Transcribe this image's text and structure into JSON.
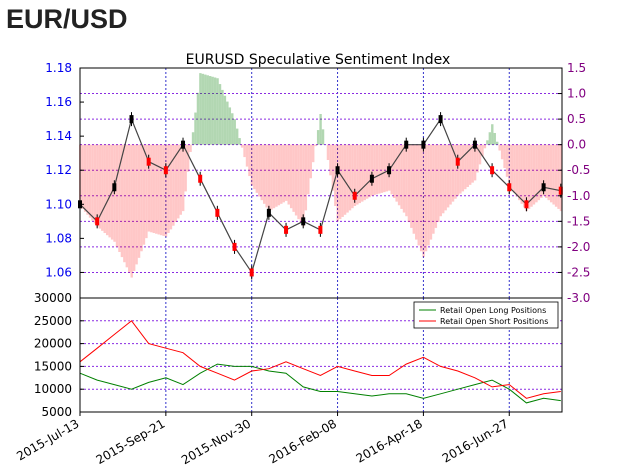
{
  "header": {
    "title": "EUR/USD"
  },
  "chart_data": [
    {
      "type": "line",
      "title": "EURUSD Speculative Sentiment Index",
      "xlabel": "",
      "ylabel": "",
      "x_tick_labels": [
        "2015-Jul-13",
        "2015-Sep-21",
        "2015-Nov-30",
        "2016-Feb-08",
        "2016-Apr-18",
        "2016-Jun-27"
      ],
      "x_tick_dates": [
        "2015-07-13",
        "2015-09-21",
        "2015-11-30",
        "2016-02-08",
        "2016-04-18",
        "2016-06-27"
      ],
      "x_range": [
        "2015-07-13",
        "2016-08-09"
      ],
      "y_left_ticks": [
        "1.06",
        "1.08",
        "1.10",
        "1.12",
        "1.14",
        "1.16",
        "1.18"
      ],
      "y_left_range": [
        1.045,
        1.18
      ],
      "y_right_ticks": [
        "-3.0",
        "-2.5",
        "-2.0",
        "-1.5",
        "-1.0",
        "-0.5",
        "0.0",
        "0.5",
        "1.0",
        "1.5"
      ],
      "y_right_range": [
        -3.0,
        1.5
      ],
      "grid": true,
      "colors": {
        "price": "#000000",
        "ssi_positive": "#228b22",
        "ssi_negative": "#ff0000",
        "left_axis": "#0000ee",
        "right_axis": "#800080"
      },
      "series": [
        {
          "name": "",
          "axis": "left",
          "style": "candlestick",
          "x": [
            "2015-07-13",
            "2015-07-27",
            "2015-08-10",
            "2015-08-24",
            "2015-09-07",
            "2015-09-21",
            "2015-10-05",
            "2015-10-19",
            "2015-11-02",
            "2015-11-16",
            "2015-11-30",
            "2015-12-14",
            "2015-12-28",
            "2016-01-11",
            "2016-01-25",
            "2016-02-08",
            "2016-02-22",
            "2016-03-07",
            "2016-03-21",
            "2016-04-04",
            "2016-04-18",
            "2016-05-02",
            "2016-05-16",
            "2016-05-30",
            "2016-06-13",
            "2016-06-27",
            "2016-07-11",
            "2016-07-25",
            "2016-08-08"
          ],
          "values": [
            1.1,
            1.09,
            1.11,
            1.15,
            1.125,
            1.12,
            1.135,
            1.115,
            1.095,
            1.075,
            1.06,
            1.095,
            1.085,
            1.09,
            1.085,
            1.12,
            1.105,
            1.115,
            1.12,
            1.135,
            1.135,
            1.15,
            1.125,
            1.135,
            1.12,
            1.11,
            1.1,
            1.11,
            1.108
          ]
        },
        {
          "name": "",
          "axis": "right",
          "style": "area",
          "x": [
            "2015-07-13",
            "2015-07-27",
            "2015-08-10",
            "2015-08-24",
            "2015-09-07",
            "2015-09-21",
            "2015-10-05",
            "2015-10-19",
            "2015-11-02",
            "2015-11-16",
            "2015-11-30",
            "2015-12-14",
            "2015-12-28",
            "2016-01-11",
            "2016-01-25",
            "2016-02-08",
            "2016-02-22",
            "2016-03-07",
            "2016-03-21",
            "2016-04-04",
            "2016-04-18",
            "2016-05-02",
            "2016-05-16",
            "2016-05-30",
            "2016-06-13",
            "2016-06-27",
            "2016-07-11",
            "2016-07-25",
            "2016-08-08"
          ],
          "values": [
            -1.2,
            -1.6,
            -1.9,
            -2.6,
            -1.7,
            -1.8,
            -1.3,
            1.4,
            1.3,
            0.5,
            -0.8,
            -1.3,
            -1.1,
            -1.6,
            0.6,
            -1.5,
            -1.2,
            -1.0,
            -0.9,
            -1.4,
            -2.2,
            -1.4,
            -1.0,
            -0.7,
            0.4,
            -0.8,
            -1.3,
            -1.0,
            -1.3
          ]
        }
      ]
    },
    {
      "type": "line",
      "title": "",
      "xlabel": "",
      "ylabel": "",
      "y_ticks": [
        "5000",
        "10000",
        "15000",
        "20000",
        "25000",
        "30000"
      ],
      "y_range": [
        5000,
        30000
      ],
      "grid": true,
      "legend": "top-right",
      "series": [
        {
          "name": "Retail Open Long Positions",
          "color": "#008000",
          "x": [
            "2015-07-13",
            "2015-07-27",
            "2015-08-10",
            "2015-08-24",
            "2015-09-07",
            "2015-09-21",
            "2015-10-05",
            "2015-10-19",
            "2015-11-02",
            "2015-11-16",
            "2015-11-30",
            "2015-12-14",
            "2015-12-28",
            "2016-01-11",
            "2016-01-25",
            "2016-02-08",
            "2016-02-22",
            "2016-03-07",
            "2016-03-21",
            "2016-04-04",
            "2016-04-18",
            "2016-05-02",
            "2016-05-16",
            "2016-05-30",
            "2016-06-13",
            "2016-06-27",
            "2016-07-11",
            "2016-07-25",
            "2016-08-08"
          ],
          "values": [
            13500,
            12000,
            11000,
            10000,
            11500,
            12500,
            11000,
            13500,
            15500,
            15000,
            15000,
            14000,
            13500,
            10500,
            9500,
            9500,
            9000,
            8500,
            9000,
            9000,
            8000,
            9000,
            10000,
            11000,
            12000,
            10000,
            7000,
            8000,
            7500
          ]
        },
        {
          "name": "Retail Open Short Positions",
          "color": "#ff0000",
          "x": [
            "2015-07-13",
            "2015-07-27",
            "2015-08-10",
            "2015-08-24",
            "2015-09-07",
            "2015-09-21",
            "2015-10-05",
            "2015-10-19",
            "2015-11-02",
            "2015-11-16",
            "2015-11-30",
            "2015-12-14",
            "2015-12-28",
            "2016-01-11",
            "2016-01-25",
            "2016-02-08",
            "2016-02-22",
            "2016-03-07",
            "2016-03-21",
            "2016-04-04",
            "2016-04-18",
            "2016-05-02",
            "2016-05-16",
            "2016-05-30",
            "2016-06-13",
            "2016-06-27",
            "2016-07-11",
            "2016-07-25",
            "2016-08-08"
          ],
          "values": [
            16000,
            19000,
            22000,
            25000,
            20000,
            19000,
            18000,
            15000,
            13500,
            12000,
            14000,
            14500,
            16000,
            14500,
            13000,
            15000,
            14000,
            13000,
            13000,
            15500,
            17000,
            15000,
            14000,
            12500,
            10500,
            11000,
            8000,
            9000,
            9500
          ]
        }
      ]
    }
  ]
}
